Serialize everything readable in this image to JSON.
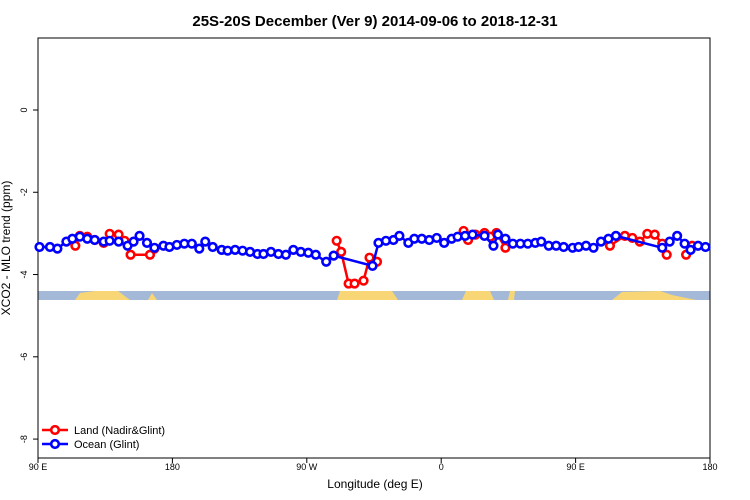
{
  "chart_data": {
    "type": "line",
    "title": "25S-20S December (Ver 9)   2014-09-06 to 2018-12-31",
    "x_label": "Longitude (deg E)",
    "y_label": "XCO2 - MLO trend (ppm)",
    "xlim": [
      90,
      540
    ],
    "xticks": [
      {
        "value": 90,
        "label": "90 E"
      },
      {
        "value": 180,
        "label": "180"
      },
      {
        "value": 270,
        "label": "90 W"
      },
      {
        "value": 360,
        "label": "0"
      },
      {
        "value": 450,
        "label": "90 E"
      },
      {
        "value": 540,
        "label": "180"
      }
    ],
    "ylim": [
      -8.46,
      1.75
    ],
    "yticks": [
      0,
      -2,
      -4,
      -6,
      -8
    ],
    "legend": "bottomleft",
    "series": [
      {
        "name": "Land (Nadir&Glint)",
        "color": "#ff0000",
        "x": [
          115,
          118,
          123,
          128,
          134,
          138,
          144,
          148,
          152,
          165,
          168,
          null,
          290,
          293,
          298,
          302,
          308,
          312,
          317,
          null,
          375,
          378,
          383,
          389,
          393,
          397,
          403,
          null,
          473,
          483,
          488,
          493,
          498,
          503,
          508,
          511,
          null,
          524,
          528
        ],
        "values": [
          -3.3,
          -3.06,
          -3.08,
          -3.16,
          -3.23,
          -3.01,
          -3.03,
          -3.18,
          -3.52,
          -3.52,
          -3.37,
          null,
          -3.18,
          -3.45,
          -4.22,
          -4.22,
          -4.15,
          -3.59,
          -3.69,
          null,
          -2.94,
          -3.16,
          -3.03,
          -2.99,
          -3.08,
          -2.99,
          -3.35,
          null,
          -3.3,
          -3.06,
          -3.11,
          -3.2,
          -3.01,
          -3.03,
          -3.25,
          -3.52,
          null,
          -3.52,
          -3.3
        ]
      },
      {
        "name": "Ocean (Glint)",
        "color": "#0000ff",
        "x": [
          91,
          98,
          103,
          109,
          113,
          118,
          123,
          128,
          134,
          138,
          144,
          150,
          154,
          158,
          163,
          168,
          174,
          178,
          183,
          188,
          193,
          198,
          202,
          207,
          213,
          217,
          222,
          227,
          232,
          237,
          241,
          246,
          251,
          256,
          261,
          266,
          271,
          276,
          283,
          288,
          314,
          318,
          323,
          328,
          332,
          338,
          342,
          347,
          352,
          357,
          362,
          367,
          371,
          376,
          381,
          389,
          395,
          398,
          403,
          408,
          413,
          418,
          423,
          427,
          432,
          437,
          442,
          448,
          452,
          457,
          462,
          467,
          472,
          477,
          508,
          513,
          518,
          523,
          527,
          532,
          537
        ],
        "values": [
          -3.33,
          -3.33,
          -3.37,
          -3.2,
          -3.13,
          -3.08,
          -3.13,
          -3.16,
          -3.2,
          -3.18,
          -3.2,
          -3.3,
          -3.2,
          -3.06,
          -3.23,
          -3.35,
          -3.3,
          -3.33,
          -3.28,
          -3.25,
          -3.25,
          -3.37,
          -3.2,
          -3.33,
          -3.4,
          -3.42,
          -3.4,
          -3.42,
          -3.45,
          -3.5,
          -3.5,
          -3.45,
          -3.5,
          -3.52,
          -3.4,
          -3.45,
          -3.47,
          -3.52,
          -3.69,
          -3.54,
          -3.79,
          -3.23,
          -3.18,
          -3.16,
          -3.06,
          -3.23,
          -3.13,
          -3.13,
          -3.16,
          -3.11,
          -3.23,
          -3.13,
          -3.08,
          -3.06,
          -3.03,
          -3.06,
          -3.3,
          -3.03,
          -3.13,
          -3.25,
          -3.25,
          -3.25,
          -3.23,
          -3.2,
          -3.3,
          -3.3,
          -3.33,
          -3.35,
          -3.33,
          -3.3,
          -3.35,
          -3.2,
          -3.13,
          -3.06,
          -3.35,
          -3.2,
          -3.06,
          -3.25,
          -3.4,
          -3.3,
          -3.33
        ]
      }
    ]
  }
}
